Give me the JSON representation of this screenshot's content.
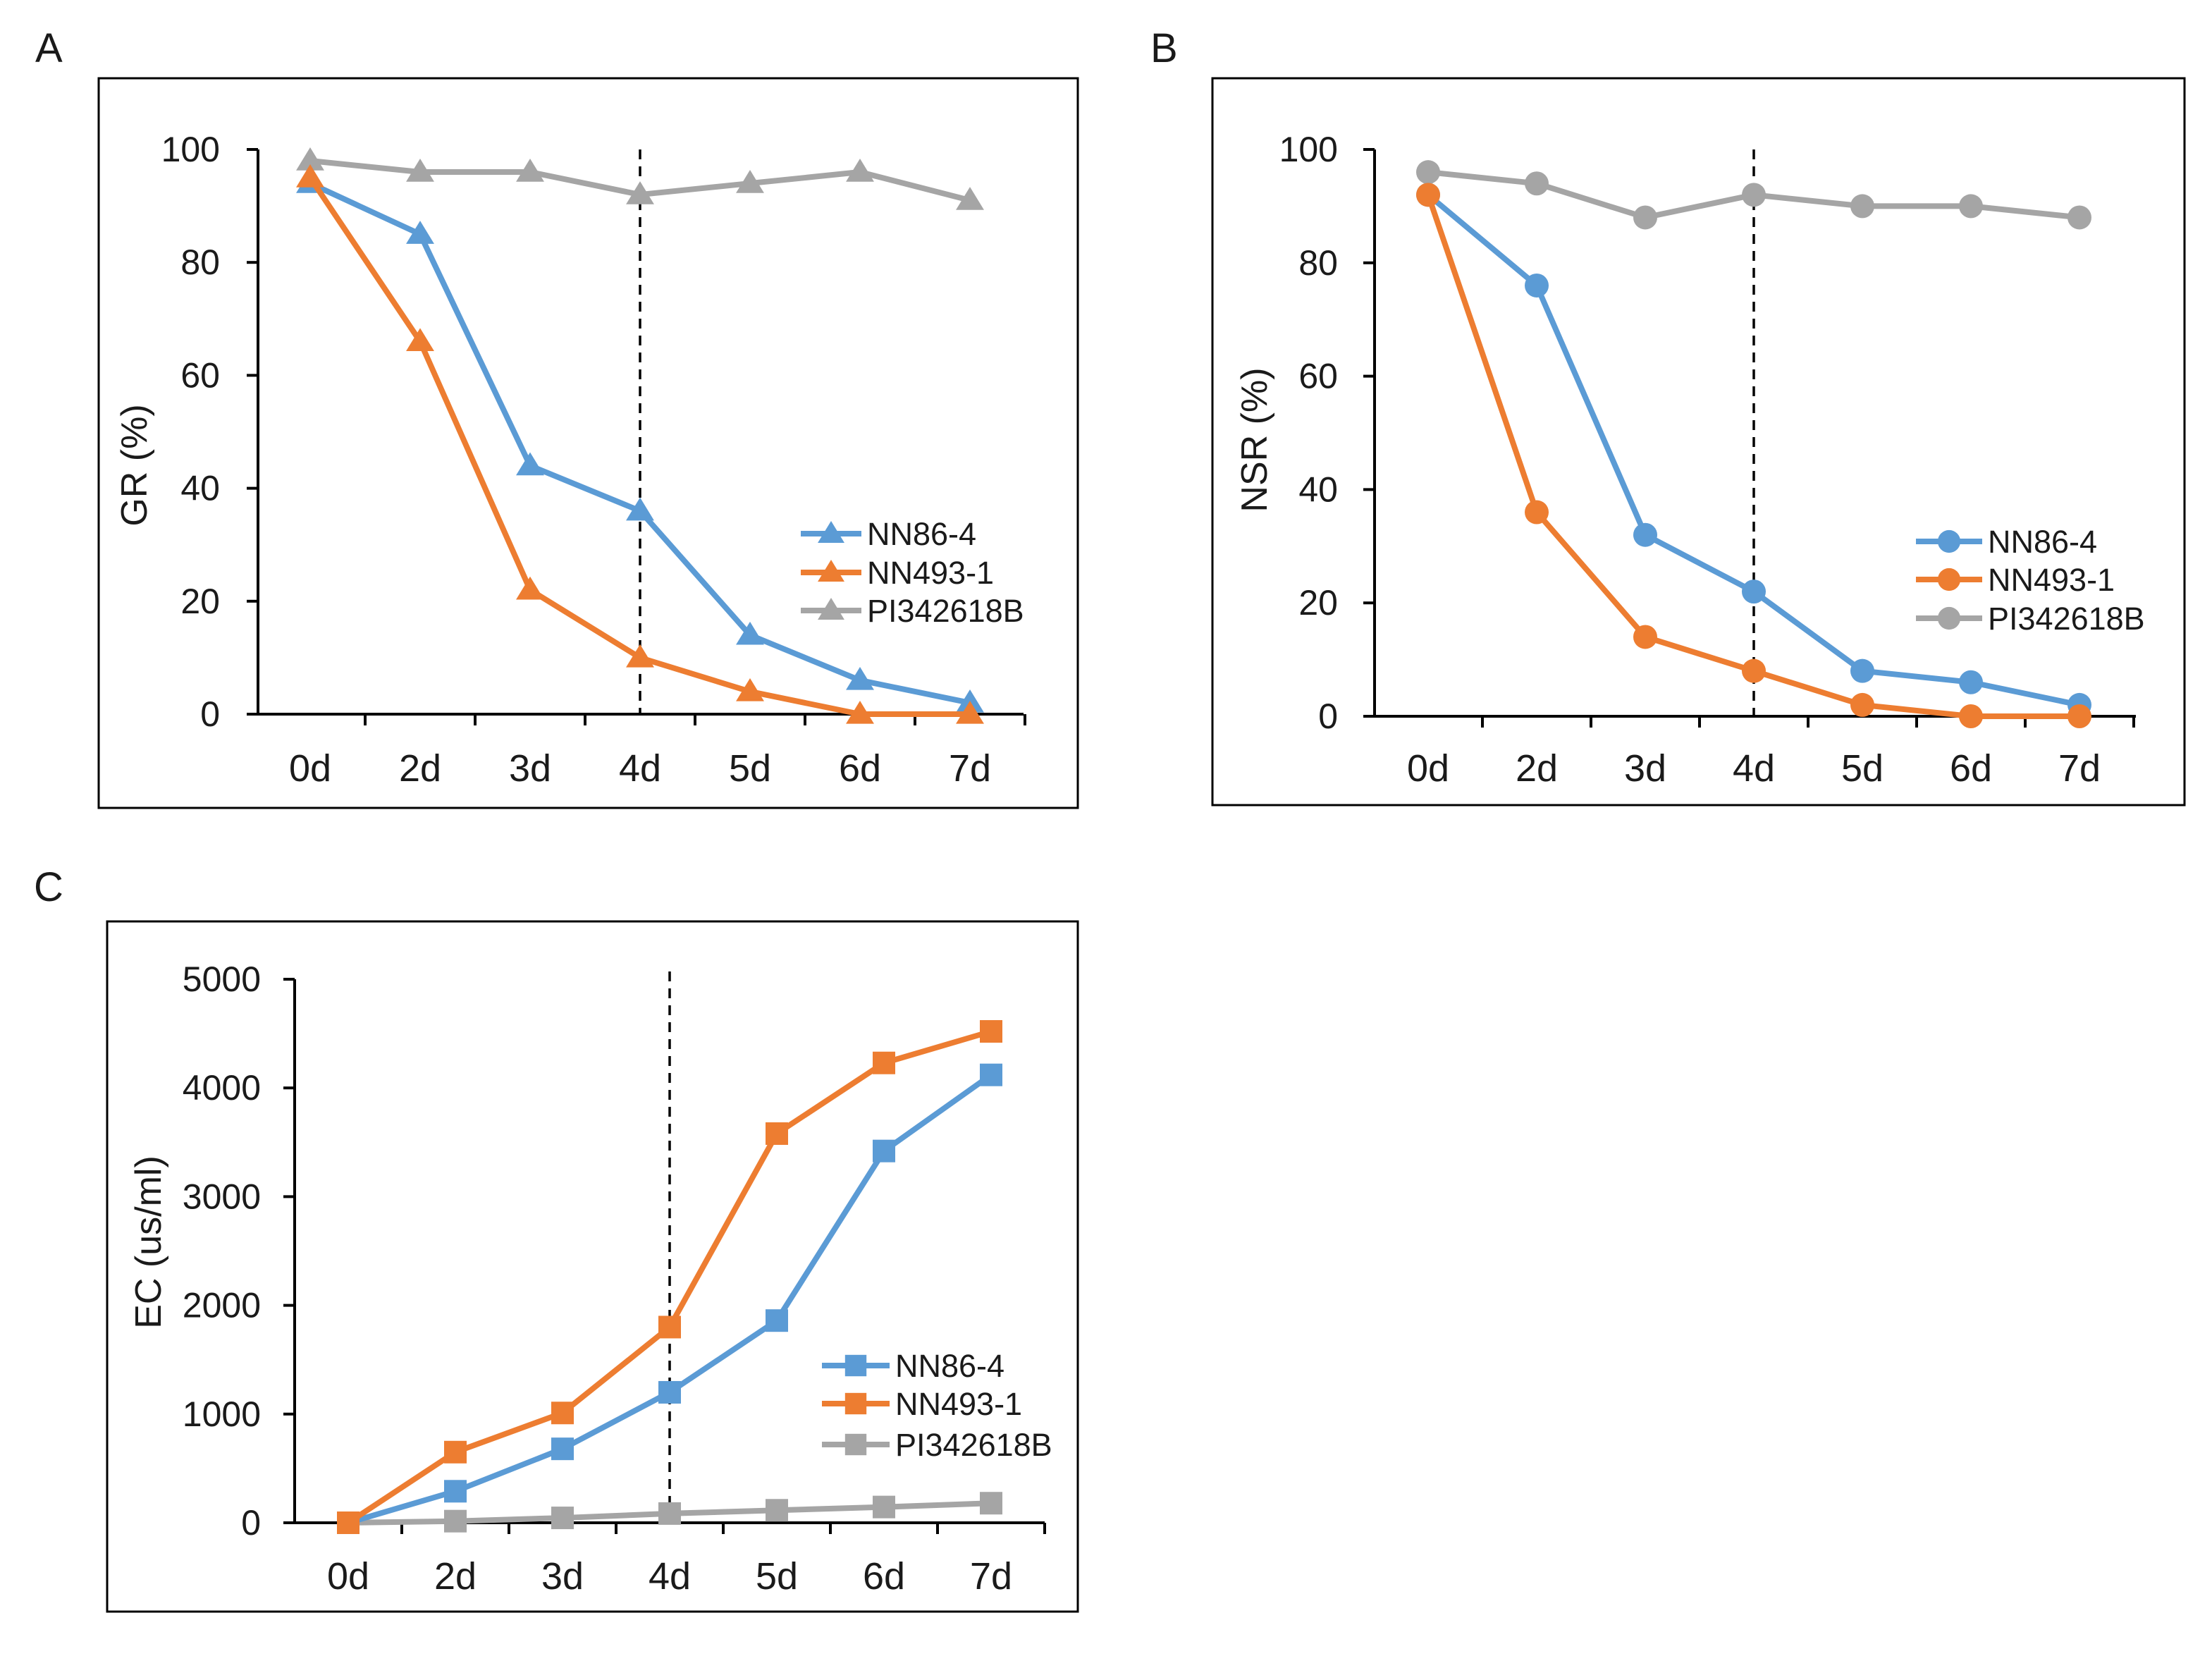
{
  "figure": {
    "panels": [
      "A",
      "B",
      "C"
    ]
  },
  "colors": {
    "series_blue": "#5B9BD5",
    "series_orange": "#ED7D31",
    "series_gray": "#A5A5A5",
    "axis": "#000000",
    "frame": "#000000"
  },
  "chart_data": [
    {
      "panel": "A",
      "type": "line",
      "marker": "triangle",
      "title": "",
      "xlabel": "",
      "ylabel": "GR (%)",
      "categories": [
        "0d",
        "2d",
        "3d",
        "4d",
        "5d",
        "6d",
        "7d"
      ],
      "ylim": [
        0,
        100
      ],
      "yticks": [
        0,
        20,
        40,
        60,
        80,
        100
      ],
      "grid": false,
      "legend_position": "right",
      "reference_line": {
        "category": "4d",
        "style": "dashed"
      },
      "series": [
        {
          "name": "NN86-4",
          "color": "#5B9BD5",
          "values": [
            94,
            85,
            44,
            36,
            14,
            6,
            2
          ]
        },
        {
          "name": "NN493-1",
          "color": "#ED7D31",
          "values": [
            95,
            66,
            22,
            10,
            4,
            0,
            0
          ]
        },
        {
          "name": "PI342618B",
          "color": "#A5A5A5",
          "values": [
            98,
            96,
            96,
            92,
            94,
            96,
            91
          ]
        }
      ]
    },
    {
      "panel": "B",
      "type": "line",
      "marker": "circle",
      "title": "",
      "xlabel": "",
      "ylabel": "NSR (%)",
      "categories": [
        "0d",
        "2d",
        "3d",
        "4d",
        "5d",
        "6d",
        "7d"
      ],
      "ylim": [
        0,
        100
      ],
      "yticks": [
        0,
        20,
        40,
        60,
        80,
        100
      ],
      "grid": false,
      "legend_position": "right",
      "reference_line": {
        "category": "4d",
        "style": "dashed"
      },
      "series": [
        {
          "name": "NN86-4",
          "color": "#5B9BD5",
          "values": [
            92,
            76,
            32,
            22,
            8,
            6,
            2
          ]
        },
        {
          "name": "NN493-1",
          "color": "#ED7D31",
          "values": [
            92,
            36,
            14,
            8,
            2,
            0,
            0
          ]
        },
        {
          "name": "PI342618B",
          "color": "#A5A5A5",
          "values": [
            96,
            94,
            88,
            92,
            90,
            90,
            88
          ]
        }
      ]
    },
    {
      "panel": "C",
      "type": "line",
      "marker": "square",
      "title": "",
      "xlabel": "",
      "ylabel": "EC (us/ml)",
      "categories": [
        "0d",
        "2d",
        "3d",
        "4d",
        "5d",
        "6d",
        "7d"
      ],
      "ylim": [
        0,
        5000
      ],
      "yticks": [
        0,
        1000,
        2000,
        3000,
        4000,
        5000
      ],
      "grid": false,
      "legend_position": "right",
      "reference_line": {
        "category": "4d",
        "style": "dashed"
      },
      "series": [
        {
          "name": "NN86-4",
          "color": "#5B9BD5",
          "values": [
            0,
            290,
            680,
            1200,
            1860,
            3420,
            4120
          ]
        },
        {
          "name": "NN493-1",
          "color": "#ED7D31",
          "values": [
            0,
            650,
            1010,
            1800,
            3580,
            4230,
            4520
          ]
        },
        {
          "name": "PI342618B",
          "color": "#A5A5A5",
          "values": [
            0,
            15,
            45,
            85,
            115,
            145,
            180
          ]
        }
      ]
    }
  ]
}
